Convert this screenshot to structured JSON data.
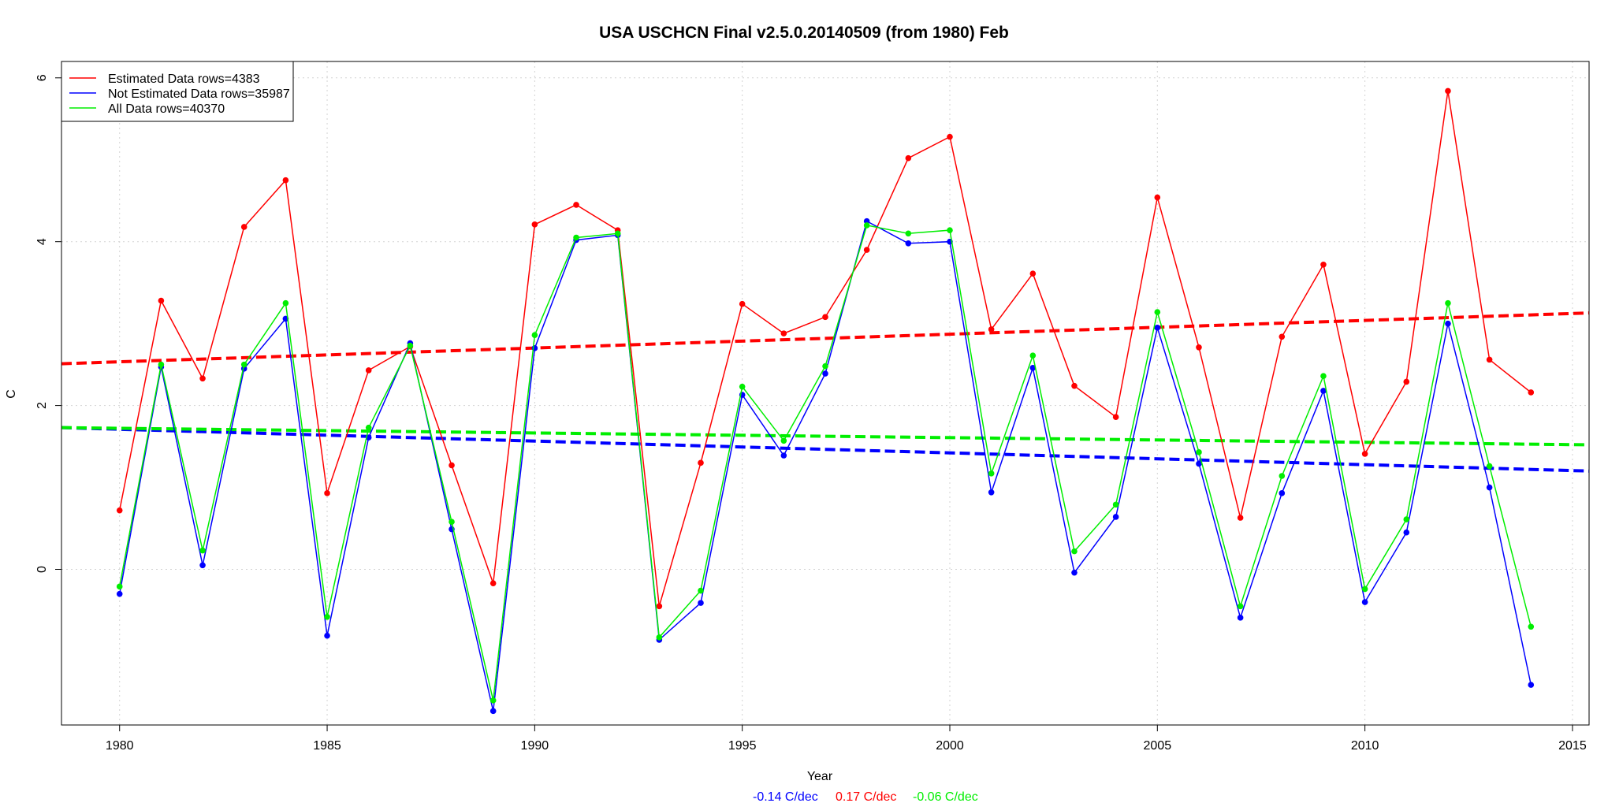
{
  "chart_data": {
    "type": "line",
    "title": "USA USCHCN Final v2.5.0.20140509 (from 1980) Feb",
    "xlabel": "Year",
    "ylabel": "C",
    "xlim": [
      1978.6,
      2015.4
    ],
    "ylim": [
      -1.9,
      6.2
    ],
    "x_ticks": [
      1980,
      1985,
      1990,
      1995,
      2000,
      2005,
      2010,
      2015
    ],
    "y_ticks": [
      0,
      2,
      4,
      6
    ],
    "grid": true,
    "legend_position": "top-left",
    "x": [
      1980,
      1981,
      1982,
      1983,
      1984,
      1985,
      1986,
      1987,
      1988,
      1989,
      1990,
      1991,
      1992,
      1993,
      1994,
      1995,
      1996,
      1997,
      1998,
      1999,
      2000,
      2001,
      2002,
      2003,
      2004,
      2005,
      2006,
      2007,
      2008,
      2009,
      2010,
      2011,
      2012,
      2013,
      2014
    ],
    "series": [
      {
        "name": "Estimated Data rows=4383",
        "color": "#ff0000",
        "values": [
          0.72,
          3.28,
          2.33,
          4.18,
          4.75,
          0.93,
          2.43,
          2.72,
          1.27,
          -0.17,
          4.21,
          4.45,
          4.14,
          -0.45,
          1.3,
          3.24,
          2.88,
          3.08,
          3.9,
          5.02,
          5.28,
          2.93,
          3.61,
          2.24,
          1.86,
          4.54,
          2.71,
          0.63,
          2.84,
          3.72,
          1.41,
          2.29,
          5.84,
          2.56,
          2.16
        ],
        "trend": [
          2.51,
          3.13
        ],
        "trend_label": "0.17 C/dec"
      },
      {
        "name": "Not Estimated Data rows=35987",
        "color": "#0000ff",
        "values": [
          -0.3,
          2.47,
          0.05,
          2.45,
          3.06,
          -0.81,
          1.61,
          2.76,
          0.49,
          -1.73,
          2.7,
          4.02,
          4.08,
          -0.86,
          -0.41,
          2.13,
          1.39,
          2.39,
          4.25,
          3.98,
          4.0,
          0.94,
          2.46,
          -0.04,
          0.64,
          2.95,
          1.29,
          -0.59,
          0.93,
          2.18,
          -0.4,
          0.45,
          3.0,
          1.0,
          -1.41
        ],
        "trend": [
          1.73,
          1.2
        ],
        "trend_label": "-0.14 C/dec"
      },
      {
        "name": "All Data rows=40370",
        "color": "#00ee00",
        "values": [
          -0.21,
          2.5,
          0.23,
          2.5,
          3.25,
          -0.58,
          1.73,
          2.73,
          0.58,
          -1.6,
          2.86,
          4.05,
          4.1,
          -0.83,
          -0.26,
          2.23,
          1.57,
          2.48,
          4.2,
          4.1,
          4.14,
          1.17,
          2.61,
          0.22,
          0.79,
          3.14,
          1.43,
          -0.45,
          1.14,
          2.36,
          -0.24,
          0.61,
          3.25,
          1.26,
          -0.7
        ],
        "trend": [
          1.73,
          1.52
        ],
        "trend_label": "-0.06 C/dec"
      }
    ],
    "trend_x_range": [
      1978.6,
      2015.4
    ]
  }
}
